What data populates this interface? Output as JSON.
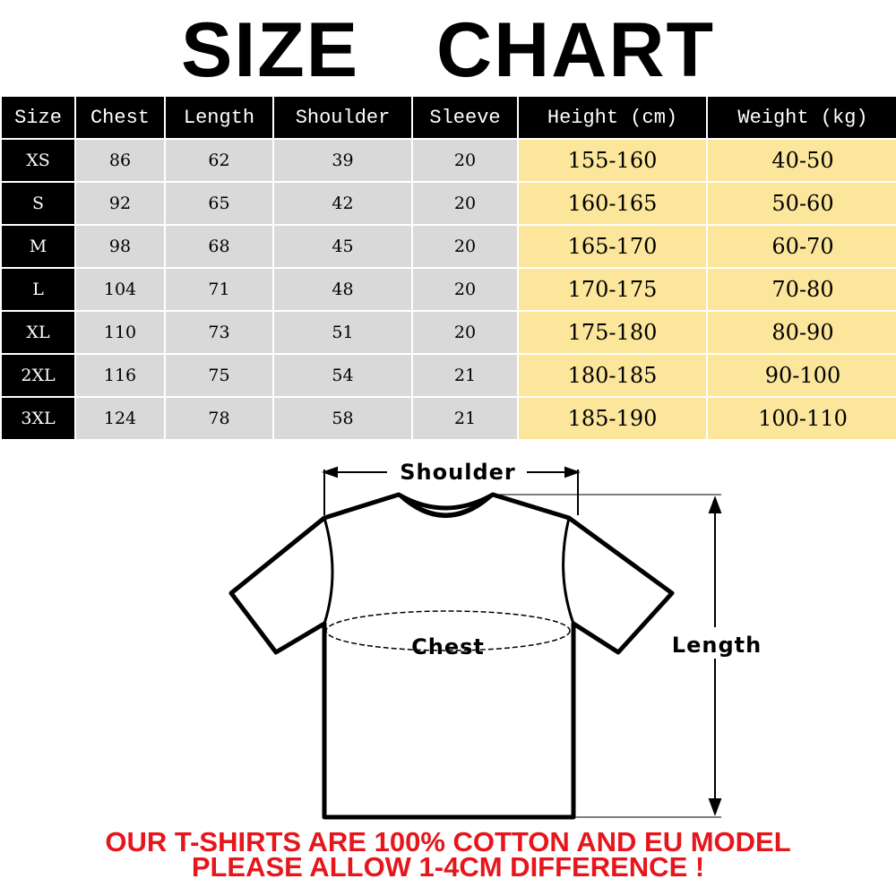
{
  "title": "SIZE CHART",
  "table": {
    "headers": [
      "Size",
      "Chest",
      "Length",
      "Shoulder",
      "Sleeve",
      "Height (cm)",
      "Weight (kg)"
    ],
    "rows": [
      [
        "XS",
        "86",
        "62",
        "39",
        "20",
        "155-160",
        "40-50"
      ],
      [
        "S",
        "92",
        "65",
        "42",
        "20",
        "160-165",
        "50-60"
      ],
      [
        "M",
        "98",
        "68",
        "45",
        "20",
        "165-170",
        "60-70"
      ],
      [
        "L",
        "104",
        "71",
        "48",
        "20",
        "170-175",
        "70-80"
      ],
      [
        "XL",
        "110",
        "73",
        "51",
        "20",
        "175-180",
        "80-90"
      ],
      [
        "2XL",
        "116",
        "75",
        "54",
        "21",
        "180-185",
        "90-100"
      ],
      [
        "3XL",
        "124",
        "78",
        "58",
        "21",
        "185-190",
        "100-110"
      ]
    ]
  },
  "diagram": {
    "shoulder_label": "Shoulder",
    "chest_label": "Chest",
    "length_label": "Length"
  },
  "footer": {
    "line1": "OUR T-SHIRTS ARE 100% COTTON AND EU MODEL",
    "line2": "PLEASE ALLOW 1-4CM DIFFERENCE !"
  },
  "colors": {
    "header_bg": "#000000",
    "measure_bg": "#d9d9d9",
    "fit_bg": "#fce69c",
    "footer_text": "#e5161c"
  }
}
